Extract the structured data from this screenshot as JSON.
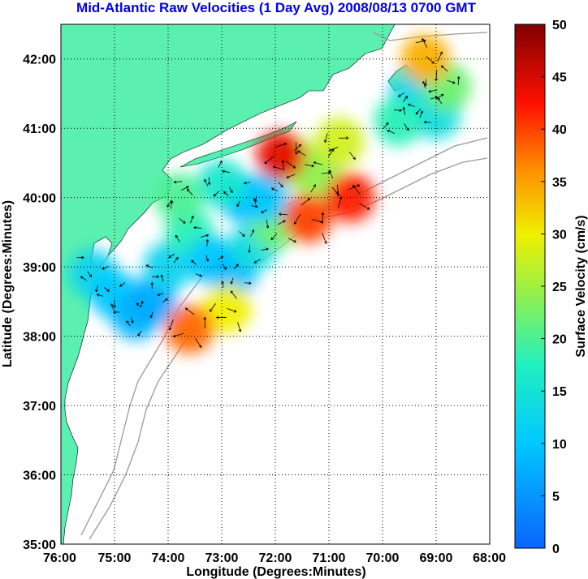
{
  "chart_data": {
    "type": "heatmap",
    "title": "Mid-Atlantic Raw Velocities (1 Day Avg) 2008/08/13 0700 GMT",
    "xlabel": "Longitude (Degrees:Minutes)",
    "ylabel": "Latitude (Degrees:Minutes)",
    "colorbar_label": "Surface Velocity (cm/s)",
    "x_ticks": [
      "76:00",
      "75:00",
      "74:00",
      "73:00",
      "72:00",
      "71:00",
      "70:00",
      "69:00",
      "68:00"
    ],
    "y_ticks": [
      "35:00",
      "36:00",
      "37:00",
      "38:00",
      "39:00",
      "40:00",
      "41:00",
      "42:00"
    ],
    "colorbar_ticks": [
      "0",
      "5",
      "10",
      "15",
      "20",
      "25",
      "30",
      "35",
      "40",
      "45",
      "50"
    ],
    "xlim": [
      -76,
      -68
    ],
    "ylim": [
      35,
      42.5
    ],
    "clim": [
      0,
      50
    ],
    "grid": "dotted",
    "colormap": "jet",
    "land_color": "#5cf0b0",
    "velocity_field": [
      {
        "lon": -75.4,
        "lat": 38.9,
        "v": 12
      },
      {
        "lon": -75.0,
        "lat": 38.6,
        "v": 10
      },
      {
        "lon": -74.6,
        "lat": 38.3,
        "v": 8
      },
      {
        "lon": -74.3,
        "lat": 38.5,
        "v": 7
      },
      {
        "lon": -74.0,
        "lat": 39.0,
        "v": 12
      },
      {
        "lon": -73.6,
        "lat": 39.5,
        "v": 18
      },
      {
        "lon": -73.2,
        "lat": 39.1,
        "v": 10
      },
      {
        "lon": -72.8,
        "lat": 38.9,
        "v": 9
      },
      {
        "lon": -72.4,
        "lat": 39.3,
        "v": 14
      },
      {
        "lon": -72.0,
        "lat": 39.6,
        "v": 22
      },
      {
        "lon": -72.6,
        "lat": 40.0,
        "v": 9
      },
      {
        "lon": -72.2,
        "lat": 40.0,
        "v": 10
      },
      {
        "lon": -73.0,
        "lat": 40.2,
        "v": 16
      },
      {
        "lon": -73.8,
        "lat": 40.0,
        "v": 20
      },
      {
        "lon": -71.6,
        "lat": 40.5,
        "v": 26
      },
      {
        "lon": -71.2,
        "lat": 40.3,
        "v": 24
      },
      {
        "lon": -70.6,
        "lat": 40.0,
        "v": 42
      },
      {
        "lon": -71.4,
        "lat": 39.7,
        "v": 40
      },
      {
        "lon": -70.8,
        "lat": 40.8,
        "v": 28
      },
      {
        "lon": -71.9,
        "lat": 40.6,
        "v": 44
      },
      {
        "lon": -72.9,
        "lat": 38.4,
        "v": 30
      },
      {
        "lon": -73.6,
        "lat": 38.1,
        "v": 38
      },
      {
        "lon": -69.4,
        "lat": 41.5,
        "v": 12
      },
      {
        "lon": -69.0,
        "lat": 41.2,
        "v": 14
      },
      {
        "lon": -68.8,
        "lat": 41.6,
        "v": 22
      },
      {
        "lon": -69.7,
        "lat": 41.1,
        "v": 18
      },
      {
        "lon": -69.2,
        "lat": 42.0,
        "v": 34
      }
    ]
  }
}
